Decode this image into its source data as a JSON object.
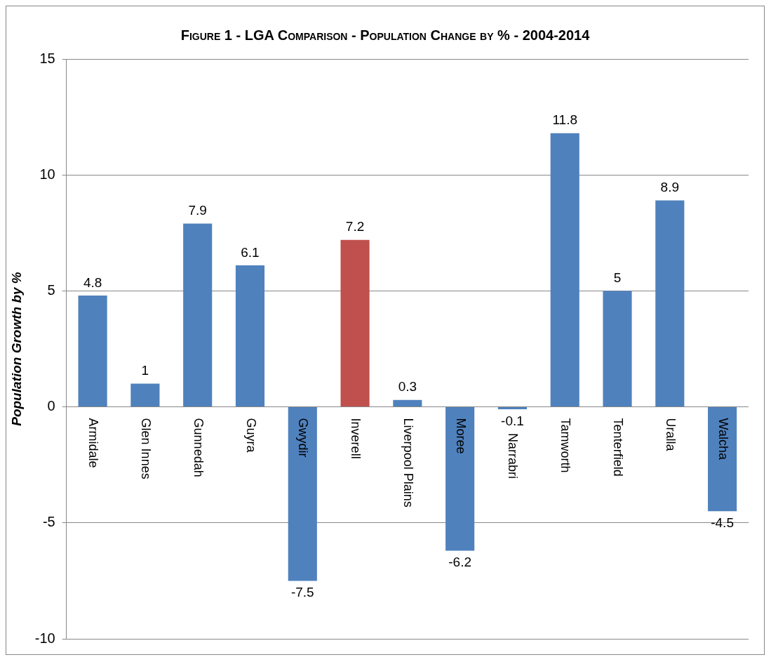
{
  "chart_data": {
    "type": "bar",
    "title": "Figure 1 - LGA Comparison - Population Change by % - 2004-2014",
    "ylabel": "Population Growth by %",
    "categories": [
      "Armidale",
      "Glen Innes",
      "Gunnedah",
      "Guyra",
      "Gwydir",
      "Inverell",
      "Liverpool Plains",
      "Moree",
      "Narrabri",
      "Tamworth",
      "Tenterfield",
      "Uralla",
      "Walcha"
    ],
    "values": [
      4.8,
      1,
      7.9,
      6.1,
      -7.5,
      7.2,
      0.3,
      -6.2,
      -0.1,
      11.8,
      5,
      8.9,
      -4.5
    ],
    "colors": [
      "#4f81bd",
      "#4f81bd",
      "#4f81bd",
      "#4f81bd",
      "#4f81bd",
      "#c0504d",
      "#4f81bd",
      "#4f81bd",
      "#4f81bd",
      "#4f81bd",
      "#4f81bd",
      "#4f81bd",
      "#4f81bd"
    ],
    "ylim": [
      -10,
      15
    ],
    "yticks": [
      -10,
      -5,
      0,
      5,
      10,
      15
    ],
    "grid": "y",
    "data_labels": true,
    "legend": false
  }
}
